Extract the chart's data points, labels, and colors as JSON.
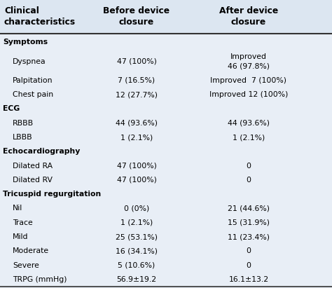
{
  "header_col1": "Clinical\ncharacteristics",
  "header_col2": "Before device\nclosure",
  "header_col3": "After device\nclosure",
  "header_bg": "#dce6f1",
  "table_bg": "#e8eef6",
  "rows": [
    {
      "label": "Symptoms",
      "col2": "",
      "col3": "",
      "bold": true,
      "indent": 0,
      "dyspnea_row": false
    },
    {
      "label": "Dyspnea",
      "col2": "47 (100%)",
      "col3": "Improved\n46 (97.8%)",
      "bold": false,
      "indent": 1,
      "dyspnea_row": true
    },
    {
      "label": "Palpitation",
      "col2": "7 (16.5%)",
      "col3": "Improved  7 (100%)",
      "bold": false,
      "indent": 1,
      "dyspnea_row": false
    },
    {
      "label": "Chest pain",
      "col2": "12 (27.7%)",
      "col3": "Improved 12 (100%)",
      "bold": false,
      "indent": 1,
      "dyspnea_row": false
    },
    {
      "label": "ECG",
      "col2": "",
      "col3": "",
      "bold": true,
      "indent": 0,
      "dyspnea_row": false
    },
    {
      "label": "RBBB",
      "col2": "44 (93.6%)",
      "col3": "44 (93.6%)",
      "bold": false,
      "indent": 1,
      "dyspnea_row": false
    },
    {
      "label": "LBBB",
      "col2": "1 (2.1%)",
      "col3": "1 (2.1%)",
      "bold": false,
      "indent": 1,
      "dyspnea_row": false
    },
    {
      "label": "Echocardiography",
      "col2": "",
      "col3": "",
      "bold": true,
      "indent": 0,
      "dyspnea_row": false
    },
    {
      "label": "Dilated RA",
      "col2": "47 (100%)",
      "col3": "0",
      "bold": false,
      "indent": 1,
      "dyspnea_row": false
    },
    {
      "label": "Dilated RV",
      "col2": "47 (100%)",
      "col3": "0",
      "bold": false,
      "indent": 1,
      "dyspnea_row": false
    },
    {
      "label": "Tricuspid regurgitation",
      "col2": "",
      "col3": "",
      "bold": true,
      "indent": 0,
      "dyspnea_row": false
    },
    {
      "label": "Nil",
      "col2": "0 (0%)",
      "col3": "21 (44.6%)",
      "bold": false,
      "indent": 1,
      "dyspnea_row": false
    },
    {
      "label": "Trace",
      "col2": "1 (2.1%)",
      "col3": "15 (31.9%)",
      "bold": false,
      "indent": 1,
      "dyspnea_row": false
    },
    {
      "label": "Mild",
      "col2": "25 (53.1%)",
      "col3": "11 (23.4%)",
      "bold": false,
      "indent": 1,
      "dyspnea_row": false
    },
    {
      "label": "Moderate",
      "col2": "16 (34.1%)",
      "col3": "0",
      "bold": false,
      "indent": 1,
      "dyspnea_row": false
    },
    {
      "label": "Severe",
      "col2": "5 (10.6%)",
      "col3": "0",
      "bold": false,
      "indent": 1,
      "dyspnea_row": false
    },
    {
      "label": "TRPG (mmHg)",
      "col2": "56.9±19.2",
      "col3": "16.1±13.2",
      "bold": false,
      "indent": 1,
      "dyspnea_row": false
    }
  ],
  "font_size": 7.8,
  "header_font_size": 8.8
}
